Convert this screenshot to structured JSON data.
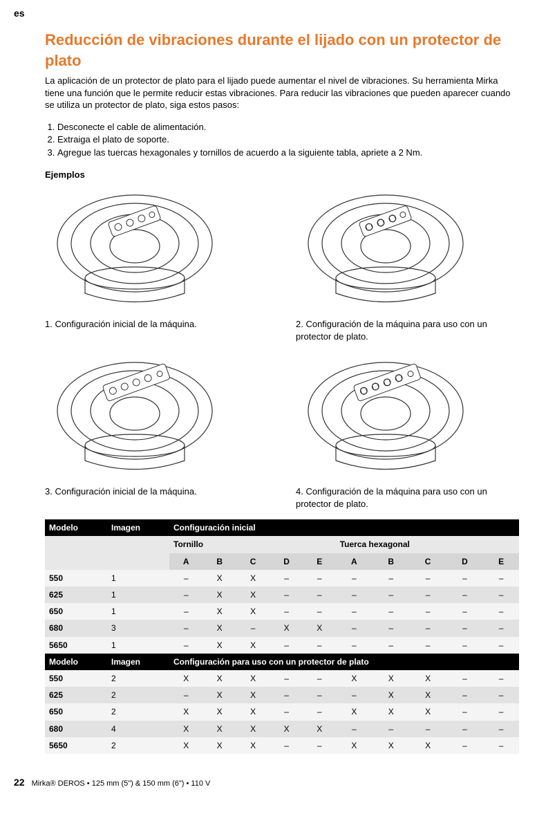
{
  "lang_code": "es",
  "title": "Reducción de vibraciones durante el lijado con un protector de plato",
  "intro": "La aplicación de un protector de plato para el lijado puede aumentar el nivel de vibraciones. Su herramienta Mirka tiene una función que le permite reducir estas vibraciones. Para reducir las vibraciones que pueden aparecer cuando se utiliza un protector de plato, siga estos pasos:",
  "steps": [
    "Desconecte el cable de alimentación.",
    "Extraiga el plato de soporte.",
    "Agregue las tuercas hexagonales y tornillos de acuerdo a la siguiente tabla, apriete a 2 Nm."
  ],
  "examples_label": "Ejemplos",
  "captions": {
    "c1": "1.  Configuración inicial de la máquina.",
    "c2": "2.  Configuración de la máquina para uso con un protector de plato.",
    "c3": "3.  Configuración inicial de la máquina.",
    "c4": "4.  Configuración de la máquina para uso con un protector de plato."
  },
  "table": {
    "hdr_modelo": "Modelo",
    "hdr_imagen": "Imagen",
    "hdr_cfg_initial": "Configuración inicial",
    "hdr_cfg_protector": "Configuración para uso con un protector de plato",
    "hdr_tornillo": "Tornillo",
    "hdr_tuerca": "Tuerca hexagonal",
    "letters": [
      "A",
      "B",
      "C",
      "D",
      "E",
      "A",
      "B",
      "C",
      "D",
      "E"
    ],
    "section1": [
      {
        "model": "550",
        "imagen": "1",
        "vals": [
          "–",
          "X",
          "X",
          "–",
          "–",
          "–",
          "–",
          "–",
          "–",
          "–"
        ]
      },
      {
        "model": "625",
        "imagen": "1",
        "vals": [
          "–",
          "X",
          "X",
          "–",
          "–",
          "–",
          "–",
          "–",
          "–",
          "–"
        ]
      },
      {
        "model": "650",
        "imagen": "1",
        "vals": [
          "–",
          "X",
          "X",
          "–",
          "–",
          "–",
          "–",
          "–",
          "–",
          "–"
        ]
      },
      {
        "model": "680",
        "imagen": "3",
        "vals": [
          "–",
          "X",
          "–",
          "X",
          "X",
          "–",
          "–",
          "–",
          "–",
          "–"
        ]
      },
      {
        "model": "5650",
        "imagen": "1",
        "vals": [
          "–",
          "X",
          "X",
          "–",
          "–",
          "–",
          "–",
          "–",
          "–",
          "–"
        ]
      }
    ],
    "section2": [
      {
        "model": "550",
        "imagen": "2",
        "vals": [
          "X",
          "X",
          "X",
          "–",
          "–",
          "X",
          "X",
          "X",
          "–",
          "–"
        ]
      },
      {
        "model": "625",
        "imagen": "2",
        "vals": [
          "–",
          "X",
          "X",
          "–",
          "–",
          "–",
          "X",
          "X",
          "–",
          "–"
        ]
      },
      {
        "model": "650",
        "imagen": "2",
        "vals": [
          "X",
          "X",
          "X",
          "–",
          "–",
          "X",
          "X",
          "X",
          "–",
          "–"
        ]
      },
      {
        "model": "680",
        "imagen": "4",
        "vals": [
          "X",
          "X",
          "X",
          "X",
          "X",
          "–",
          "–",
          "–",
          "–",
          "–"
        ]
      },
      {
        "model": "5650",
        "imagen": "2",
        "vals": [
          "X",
          "X",
          "X",
          "–",
          "–",
          "X",
          "X",
          "X",
          "–",
          "–"
        ]
      }
    ]
  },
  "footer": {
    "page": "22",
    "text": "Mirka® DEROS • 125 mm (5\") & 150 mm (6\") • 110 V"
  },
  "colors": {
    "accent": "#e7792b",
    "black": "#000000",
    "row_odd": "#f4f4f4",
    "row_even": "#e2e2e2",
    "sub": "#e8e8e8",
    "letters_bg": "#d6d6d6"
  }
}
